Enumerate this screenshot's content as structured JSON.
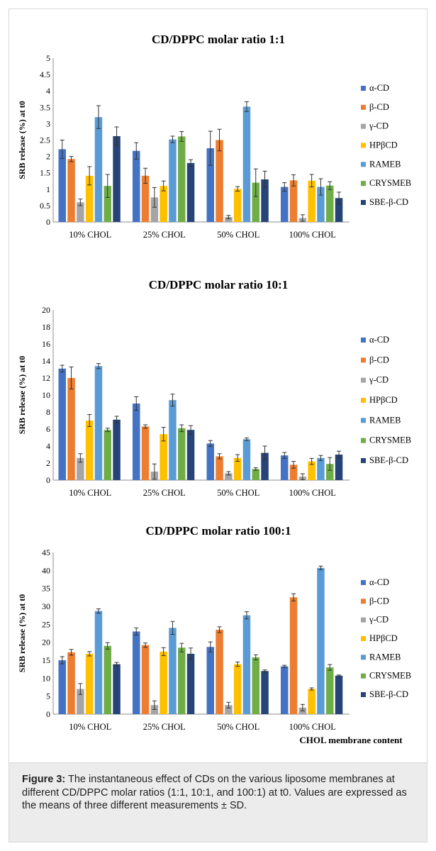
{
  "caption": {
    "label": "Figure 3:",
    "text": "The instantaneous effect of CDs on the various liposome membranes at different CD/DPPC molar ratios (1:1, 10:1, and 100:1) at t0. Values are expressed as the means of three different measurements ± SD."
  },
  "colors": {
    "α-CD": "#4472c4",
    "β-CD": "#ed7d31",
    "γ-CD": "#a5a5a5",
    "HPβCD": "#ffc000",
    "RAMEB": "#5b9bd5",
    "CRYSMEB": "#70ad47",
    "SBE-β-CD": "#264478"
  },
  "x_axis_title": "CHOL membrane content",
  "chart_data": [
    {
      "type": "bar",
      "title": "CD/DPPC molar ratio 1:1",
      "ylabel": "SRB release (%) at t0",
      "ylim": [
        0,
        5
      ],
      "yticks": [
        0,
        0.5,
        1,
        1.5,
        2,
        2.5,
        3,
        3.5,
        4,
        4.5,
        5
      ],
      "categories": [
        "10% CHOL",
        "25% CHOL",
        "50% CHOL",
        "100% CHOL"
      ],
      "series": [
        {
          "name": "α-CD",
          "values": [
            2.22,
            2.17,
            2.25,
            1.07
          ],
          "errors": [
            0.28,
            0.25,
            0.52,
            0.13
          ]
        },
        {
          "name": "β-CD",
          "values": [
            1.92,
            1.41,
            2.5,
            1.27
          ],
          "errors": [
            0.08,
            0.23,
            0.33,
            0.17
          ]
        },
        {
          "name": "γ-CD",
          "values": [
            0.6,
            0.75,
            0.15,
            0.12
          ],
          "errors": [
            0.1,
            0.3,
            0.05,
            0.1
          ]
        },
        {
          "name": "HPβCD",
          "values": [
            1.41,
            1.1,
            1.01,
            1.26
          ],
          "errors": [
            0.28,
            0.15,
            0.07,
            0.19
          ]
        },
        {
          "name": "RAMEB",
          "values": [
            3.2,
            2.52,
            3.52,
            1.07
          ],
          "errors": [
            0.35,
            0.1,
            0.15,
            0.25
          ]
        },
        {
          "name": "CRYSMEB",
          "values": [
            1.1,
            2.61,
            1.2,
            1.11
          ],
          "errors": [
            0.35,
            0.15,
            0.42,
            0.12
          ]
        },
        {
          "name": "SBE-β-CD",
          "values": [
            2.62,
            1.8,
            1.3,
            0.73
          ],
          "errors": [
            0.28,
            0.1,
            0.25,
            0.18
          ]
        }
      ]
    },
    {
      "type": "bar",
      "title": "CD/DPPC molar ratio 10:1",
      "ylabel": "SRB release (%) at t0",
      "ylim": [
        0,
        20
      ],
      "yticks": [
        0,
        2,
        4,
        6,
        8,
        10,
        12,
        14,
        16,
        18,
        20
      ],
      "categories": [
        "10% CHOL",
        "25% CHOL",
        "50% CHOL",
        "100% CHOL"
      ],
      "series": [
        {
          "name": "α-CD",
          "values": [
            13.1,
            9.0,
            4.3,
            2.9
          ],
          "errors": [
            0.4,
            0.8,
            0.35,
            0.35
          ]
        },
        {
          "name": "β-CD",
          "values": [
            12.0,
            6.3,
            2.8,
            1.8
          ],
          "errors": [
            1.3,
            0.2,
            0.3,
            0.4
          ]
        },
        {
          "name": "γ-CD",
          "values": [
            2.6,
            1.0,
            0.8,
            0.4
          ],
          "errors": [
            0.5,
            0.9,
            0.2,
            0.35
          ]
        },
        {
          "name": "HPβCD",
          "values": [
            7.0,
            5.4,
            2.6,
            2.2
          ],
          "errors": [
            0.7,
            0.8,
            0.4,
            0.35
          ]
        },
        {
          "name": "RAMEB",
          "values": [
            13.4,
            9.4,
            4.8,
            2.6
          ],
          "errors": [
            0.3,
            0.7,
            0.15,
            0.3
          ]
        },
        {
          "name": "CRYSMEB",
          "values": [
            5.9,
            6.1,
            1.3,
            1.9
          ],
          "errors": [
            0.2,
            0.4,
            0.15,
            0.75
          ]
        },
        {
          "name": "SBE-β-CD",
          "values": [
            7.1,
            5.9,
            3.2,
            3.0
          ],
          "errors": [
            0.4,
            0.5,
            0.8,
            0.4
          ]
        }
      ]
    },
    {
      "type": "bar",
      "title": "CD/DPPC molar ratio 100:1",
      "ylabel": "SRB release (%) at t0",
      "ylim": [
        0,
        45
      ],
      "yticks": [
        0,
        5,
        10,
        15,
        20,
        25,
        30,
        35,
        40,
        45
      ],
      "categories": [
        "10% CHOL",
        "25% CHOL",
        "50% CHOL",
        "100% CHOL"
      ],
      "series": [
        {
          "name": "α-CD",
          "values": [
            15.0,
            23.0,
            18.7,
            13.3
          ],
          "errors": [
            1.0,
            1.0,
            1.4,
            0.3
          ]
        },
        {
          "name": "β-CD",
          "values": [
            17.2,
            19.2,
            23.5,
            32.5
          ],
          "errors": [
            0.8,
            0.6,
            0.8,
            1.0
          ]
        },
        {
          "name": "γ-CD",
          "values": [
            7.0,
            2.5,
            2.5,
            1.8
          ],
          "errors": [
            1.5,
            1.2,
            0.8,
            0.9
          ]
        },
        {
          "name": "HPβCD",
          "values": [
            16.8,
            17.4,
            13.9,
            7.0
          ],
          "errors": [
            0.6,
            1.1,
            0.6,
            0.3
          ]
        },
        {
          "name": "RAMEB",
          "values": [
            28.7,
            24.0,
            27.5,
            40.7
          ],
          "errors": [
            0.6,
            1.8,
            1.0,
            0.5
          ]
        },
        {
          "name": "CRYSMEB",
          "values": [
            19.0,
            18.5,
            15.8,
            13.0
          ],
          "errors": [
            0.9,
            1.2,
            0.7,
            0.8
          ]
        },
        {
          "name": "SBE-β-CD",
          "values": [
            13.9,
            16.8,
            12.0,
            10.7
          ],
          "errors": [
            0.5,
            1.6,
            0.3,
            0.2
          ]
        }
      ]
    }
  ]
}
